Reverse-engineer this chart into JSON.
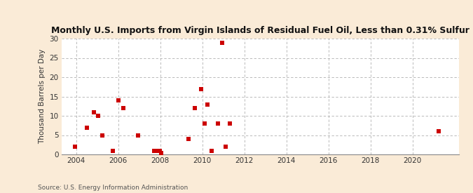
{
  "title": "Monthly U.S. Imports from Virgin Islands of Residual Fuel Oil, Less than 0.31% Sulfur",
  "ylabel": "Thousand Barrels per Day",
  "source": "Source: U.S. Energy Information Administration",
  "background_color": "#faebd7",
  "plot_background_color": "#ffffff",
  "marker_color": "#cc0000",
  "marker_size": 18,
  "xlim": [
    2003.3,
    2022.2
  ],
  "ylim": [
    0,
    30
  ],
  "yticks": [
    0,
    5,
    10,
    15,
    20,
    25,
    30
  ],
  "xticks": [
    2004,
    2006,
    2008,
    2010,
    2012,
    2014,
    2016,
    2018,
    2020
  ],
  "data_points": [
    [
      2003.95,
      2
    ],
    [
      2004.5,
      7
    ],
    [
      2004.85,
      11
    ],
    [
      2005.05,
      10
    ],
    [
      2005.25,
      5
    ],
    [
      2005.75,
      1
    ],
    [
      2006.0,
      14
    ],
    [
      2006.25,
      12
    ],
    [
      2006.95,
      5
    ],
    [
      2007.7,
      1
    ],
    [
      2007.85,
      1
    ],
    [
      2007.97,
      1
    ],
    [
      2008.05,
      0.3
    ],
    [
      2009.35,
      4
    ],
    [
      2009.65,
      12
    ],
    [
      2009.95,
      17
    ],
    [
      2010.1,
      8
    ],
    [
      2010.25,
      13
    ],
    [
      2010.45,
      1
    ],
    [
      2010.75,
      8
    ],
    [
      2010.95,
      29
    ],
    [
      2011.1,
      2
    ],
    [
      2011.3,
      8
    ],
    [
      2021.25,
      6
    ]
  ]
}
